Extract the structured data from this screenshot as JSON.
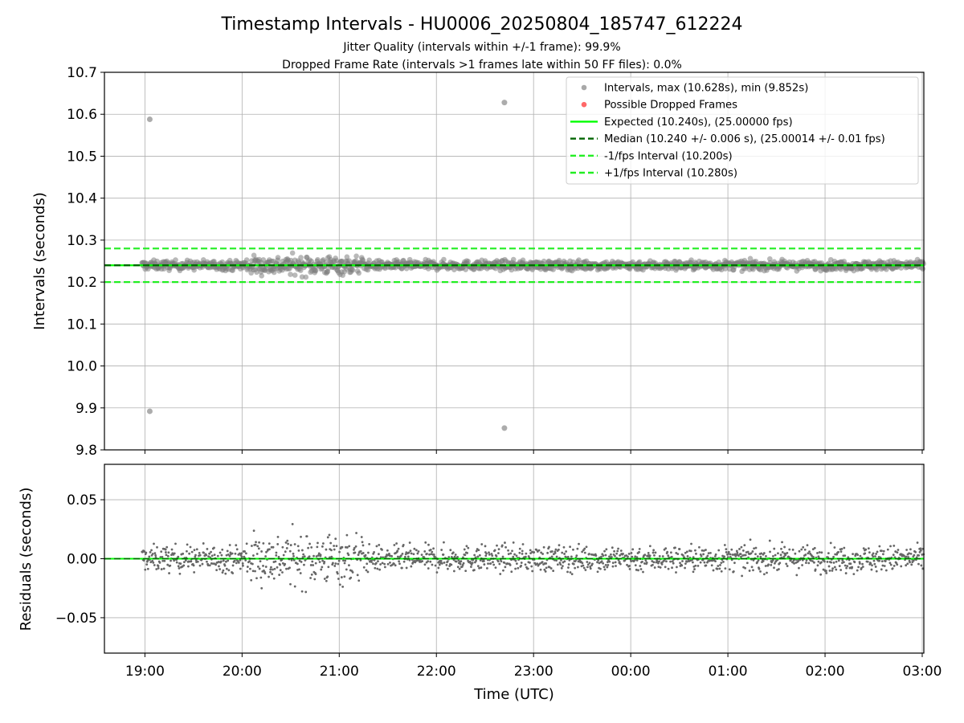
{
  "figure": {
    "title": "Timestamp Intervals - HU0006_20250804_185747_612224",
    "subtitle_line1": "Jitter Quality (intervals within +/-1 frame): 99.9%",
    "subtitle_line2": "Dropped Frame Rate (intervals >1 frames late within 50 FF files): 0.0%"
  },
  "colors": {
    "points": "#808080",
    "dropped": "#ff4d4d",
    "expected": "#00ff00",
    "median": "#006400",
    "bounds": "#22ee22",
    "grid": "#b0b0b0"
  },
  "chart_data": [
    {
      "type": "scatter",
      "panel": "top",
      "ylabel": "Intervals (seconds)",
      "ylim": [
        9.8,
        10.7
      ],
      "yticks": [
        "10.7",
        "10.6",
        "10.5",
        "10.4",
        "10.3",
        "10.2",
        "10.1",
        "10.0",
        "9.9",
        "9.8"
      ],
      "xlim": [
        "18:35",
        "03:01"
      ],
      "grid": true,
      "legend_position": "top-right",
      "legend": [
        {
          "label": "Intervals, max (10.628s), min (9.852s)",
          "style": "marker",
          "color": "#999999"
        },
        {
          "label": "Possible Dropped Frames",
          "style": "marker",
          "color": "#ff4d4d"
        },
        {
          "label": "Expected (10.240s), (25.00000 fps)",
          "style": "solid",
          "color": "#00ff00"
        },
        {
          "label": "Median (10.240 +/- 0.006 s), (25.00014 +/- 0.01 fps)",
          "style": "dashed",
          "color": "#006400"
        },
        {
          "label": "-1/fps Interval (10.200s)",
          "style": "dashed",
          "color": "#22ee22"
        },
        {
          "label": "+1/fps Interval (10.280s)",
          "style": "dashed",
          "color": "#22ee22"
        }
      ],
      "reference_lines": {
        "expected": 10.24,
        "median": 10.24,
        "lower": 10.2,
        "upper": 10.28
      },
      "series": [
        {
          "values_note_outliers": [
            {
              "x": "19:03",
              "y": 10.588
            },
            {
              "x": "19:03",
              "y": 9.892
            },
            {
              "x": "22:42",
              "y": 10.628
            },
            {
              "x": "22:42",
              "y": 9.852
            }
          ]
        }
      ]
    },
    {
      "type": "scatter",
      "panel": "bottom",
      "ylabel": "Residuals (seconds)",
      "xlabel": "Time (UTC)",
      "ylim": [
        -0.08,
        0.08
      ],
      "yticks": [
        "0.05",
        "0.00",
        "−0.05"
      ],
      "xticks": [
        "19:00",
        "20:00",
        "21:00",
        "22:00",
        "23:00",
        "00:00",
        "01:00",
        "02:00",
        "03:00"
      ],
      "grid": true
    }
  ]
}
